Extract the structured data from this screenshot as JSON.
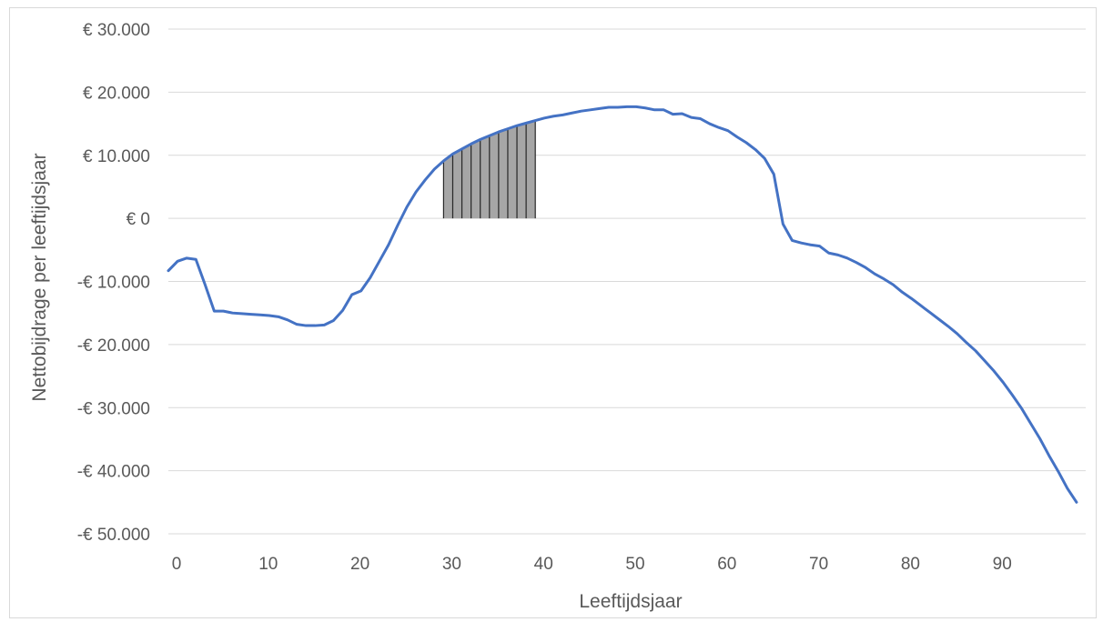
{
  "chart_data": {
    "type": "line",
    "title": "",
    "xlabel": "Leeftijdsjaar",
    "ylabel": "Nettobijdrage per leeftijdsjaar",
    "xlim": [
      0,
      100
    ],
    "ylim": [
      -50000,
      30000
    ],
    "grid": true,
    "legend": "none",
    "line_color": "#4472C4",
    "grid_color": "#d9d9d9",
    "shade_color": "#a6a6a6",
    "x_ticks": [
      0,
      10,
      20,
      30,
      40,
      50,
      60,
      70,
      80,
      90
    ],
    "x_tick_labels": [
      "0",
      "10",
      "20",
      "30",
      "40",
      "50",
      "60",
      "70",
      "80",
      "90"
    ],
    "y_ticks": [
      30000,
      20000,
      10000,
      0,
      -10000,
      -20000,
      -30000,
      -40000,
      -50000
    ],
    "y_tick_labels": [
      "€ 30.000",
      "€ 20.000",
      "€ 10.000",
      "€ 0",
      "-€ 10.000",
      "-€ 20.000",
      "-€ 30.000",
      "-€ 40.000",
      "-€ 50.000"
    ],
    "shaded_range": [
      30,
      40
    ],
    "series": [
      {
        "x": [
          0,
          1,
          2,
          3,
          4,
          5,
          6,
          7,
          8,
          9,
          10,
          11,
          12,
          13,
          14,
          15,
          16,
          17,
          18,
          19,
          20,
          21,
          22,
          23,
          24,
          25,
          26,
          27,
          28,
          29,
          30,
          31,
          32,
          33,
          34,
          35,
          36,
          37,
          38,
          39,
          40,
          41,
          42,
          43,
          44,
          45,
          46,
          47,
          48,
          49,
          50,
          51,
          52,
          53,
          54,
          55,
          56,
          57,
          58,
          59,
          60,
          61,
          62,
          63,
          64,
          65,
          66,
          67,
          68,
          69,
          70,
          71,
          72,
          73,
          74,
          75,
          76,
          77,
          78,
          79,
          80,
          81,
          82,
          83,
          84,
          85,
          86,
          87,
          88,
          89,
          90,
          91,
          92,
          93,
          94,
          95,
          96,
          97,
          98,
          99
        ],
        "values": [
          -8300,
          -6800,
          -6300,
          -6500,
          -10500,
          -14700,
          -14700,
          -15000,
          -15100,
          -15200,
          -15300,
          -15400,
          -15600,
          -16100,
          -16800,
          -17000,
          -17000,
          -16900,
          -16200,
          -14600,
          -12100,
          -11500,
          -9400,
          -6800,
          -4200,
          -1100,
          1800,
          4200,
          6100,
          7800,
          9100,
          10200,
          11000,
          11800,
          12500,
          13100,
          13700,
          14200,
          14700,
          15100,
          15500,
          15900,
          16200,
          16400,
          16700,
          17000,
          17200,
          17400,
          17600,
          17600,
          17700,
          17700,
          17500,
          17200,
          17200,
          16500,
          16600,
          16000,
          15800,
          15000,
          14400,
          13900,
          12900,
          12000,
          10900,
          9500,
          7000,
          -900,
          -3500,
          -3900,
          -4200,
          -4400,
          -5500,
          -5800,
          -6300,
          -7000,
          -7800,
          -8800,
          -9600,
          -10500,
          -11700,
          -12700,
          -13800,
          -14900,
          -16000,
          -17100,
          -18300,
          -19700,
          -21000,
          -22600,
          -24200,
          -26000,
          -28000,
          -30100,
          -32500,
          -34900,
          -37600,
          -40100,
          -42800,
          -45000
        ]
      }
    ]
  }
}
